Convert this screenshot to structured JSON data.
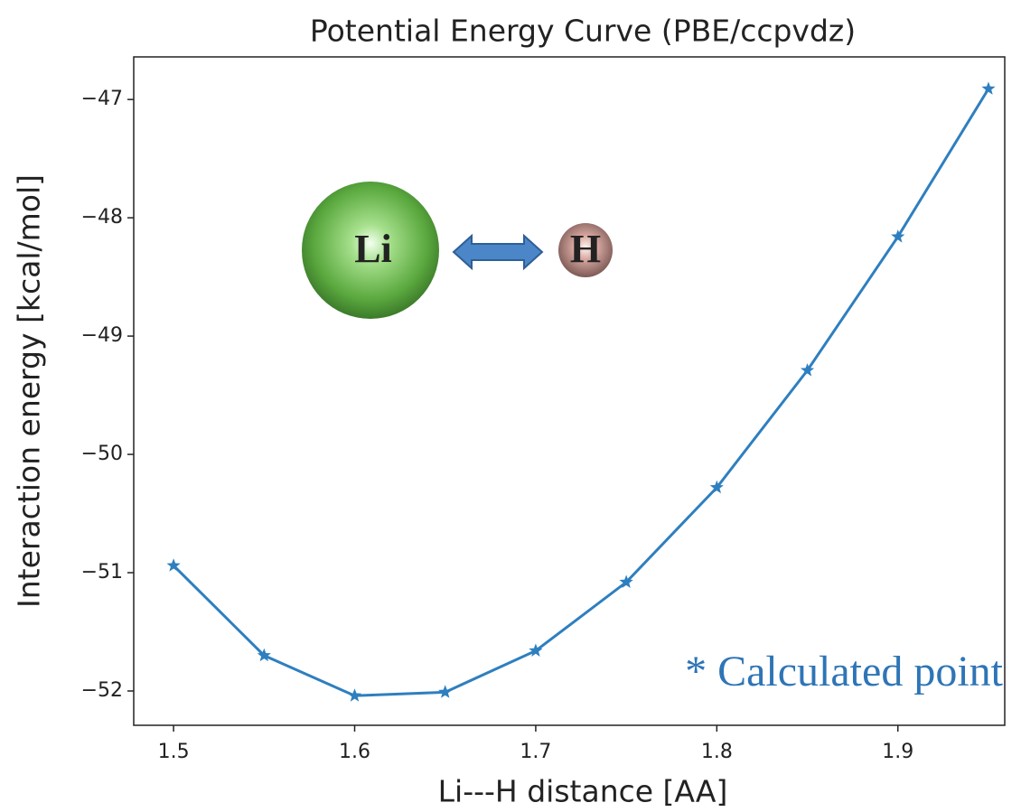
{
  "chart_data": {
    "type": "line",
    "title": "Potential Energy Curve (PBE/ccpvdz)",
    "x_label": "Li---H distance [AA]",
    "y_label": "Interaction energy [kcal/mol]",
    "x": [
      1.5,
      1.55,
      1.6,
      1.65,
      1.7,
      1.75,
      1.8,
      1.85,
      1.9,
      1.95
    ],
    "series": [
      {
        "color": "#2e7fbf",
        "marker": "star",
        "values": [
          -50.94,
          -51.7,
          -52.04,
          -52.01,
          -51.66,
          -51.08,
          -50.28,
          -49.29,
          -48.16,
          -46.91
        ]
      }
    ],
    "xlim": [
      1.478,
      1.959
    ],
    "ylim": [
      -52.29,
      -46.64
    ],
    "xticks": [
      1.5,
      1.6,
      1.7,
      1.8,
      1.9
    ],
    "yticks": [
      {
        "value": -52,
        "label": "−52"
      },
      {
        "value": -51,
        "label": "−51"
      },
      {
        "value": -50,
        "label": "−50"
      },
      {
        "value": -49,
        "label": "−49"
      },
      {
        "value": -48,
        "label": "−48"
      },
      {
        "value": -47,
        "label": "−47"
      }
    ],
    "grid": false,
    "annotations": [
      "Li",
      "H",
      "* Calculated point"
    ]
  }
}
